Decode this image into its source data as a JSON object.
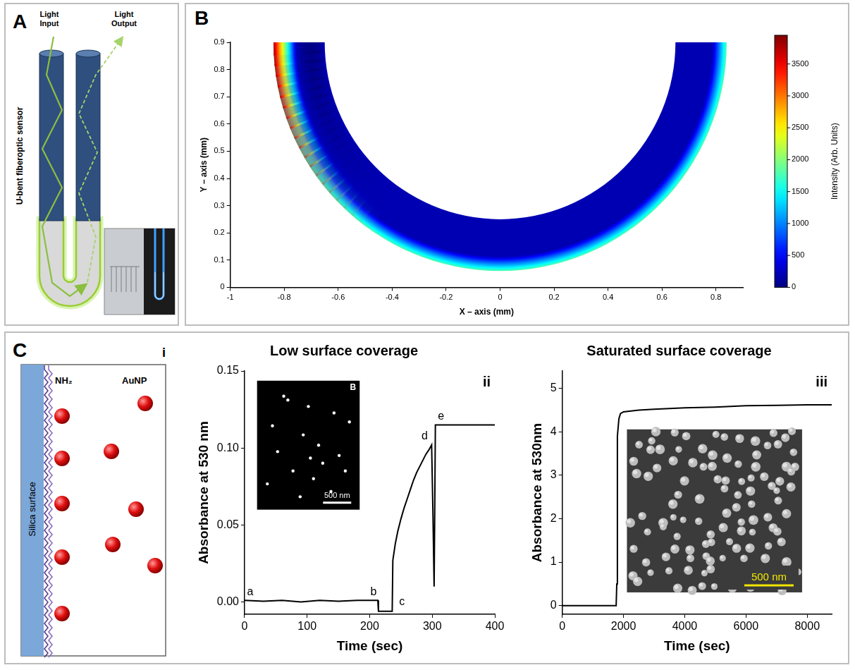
{
  "panel_A": {
    "letter": "A",
    "labels": {
      "input": "Light Input",
      "output": "Light Output",
      "device": "U-bent fiberoptic sensor"
    }
  },
  "panel_C": {
    "letter": "C",
    "i": {
      "roman": "i",
      "labels": {
        "surface": "Silica surface",
        "linker": "NH₂",
        "particle": "AuNP"
      }
    }
  },
  "chart_data": [
    {
      "panel": "B",
      "type": "heatmap",
      "x_label": "X – axis (mm)",
      "y_label": "Y – axis (mm)",
      "xlim": [
        -1,
        0.9
      ],
      "xticks": [
        -1,
        -0.8,
        -0.6,
        -0.4,
        -0.2,
        0,
        0.2,
        0.4,
        0.6,
        0.8
      ],
      "ylim": [
        0,
        0.9
      ],
      "yticks": [
        0,
        0.1,
        0.2,
        0.3,
        0.4,
        0.5,
        0.6,
        0.7,
        0.8,
        0.9
      ],
      "grid": false,
      "shape": {
        "center": [
          0,
          0.9
        ],
        "inner_radius": 0.65,
        "outer_radius": 0.84
      },
      "intensity": {
        "inner": 200,
        "rim": 1800,
        "peak": 3800
      },
      "colorbar": {
        "label": "Intensity (Arb. Units)",
        "range": [
          0,
          3950
        ],
        "ticks": [
          0,
          500,
          1000,
          1500,
          2000,
          2500,
          3000,
          3500
        ]
      }
    },
    {
      "roman": "ii",
      "type": "line",
      "title": "Low surface coverage",
      "x_label": "Time (sec)",
      "y_label": "Absorbance at 530 nm",
      "xlim": [
        0,
        400
      ],
      "xticks": [
        0,
        100,
        200,
        300,
        400
      ],
      "ylim": [
        -0.008,
        0.15
      ],
      "yticks": [
        {
          "value": 0,
          "label": "0.00"
        },
        {
          "value": 0.05,
          "label": "0.05"
        },
        {
          "value": 0.1,
          "label": "0.10"
        },
        {
          "value": 0.15,
          "label": "0.15"
        }
      ],
      "grid": false,
      "color": "#000000",
      "x": [
        0,
        30,
        60,
        90,
        120,
        150,
        180,
        213,
        214,
        236,
        237,
        241,
        245,
        250,
        255,
        260,
        265,
        270,
        275,
        280,
        285,
        290,
        295,
        299,
        301,
        303,
        304,
        305,
        320,
        350,
        400
      ],
      "values": [
        0.001,
        0.0005,
        0.001,
        0.0,
        0.001,
        0.0005,
        0.001,
        0.001,
        -0.006,
        -0.006,
        0.027,
        0.038,
        0.046,
        0.054,
        0.061,
        0.067,
        0.073,
        0.079,
        0.084,
        0.088,
        0.092,
        0.096,
        0.099,
        0.102,
        0.06,
        0.01,
        0.06,
        0.115,
        0.115,
        0.115,
        0.115
      ],
      "annotations": [
        {
          "text": "a",
          "x": 0,
          "y": 0.001
        },
        {
          "text": "b",
          "x": 213,
          "y": 0.001
        },
        {
          "text": "c",
          "x": 237,
          "y": -0.006
        },
        {
          "text": "d",
          "x": 299,
          "y": 0.102
        },
        {
          "text": "e",
          "x": 305,
          "y": 0.115
        }
      ],
      "inset": {
        "label": "B",
        "scale_bar": "500 nm"
      }
    },
    {
      "roman": "iii",
      "type": "line",
      "title": "Saturated surface coverage",
      "x_label": "Time (sec)",
      "y_label": "Absorbance at 530nm",
      "xlim": [
        0,
        8800
      ],
      "xticks": [
        0,
        2000,
        4000,
        6000,
        8000
      ],
      "ylim": [
        -0.2,
        5.4
      ],
      "yticks": [
        0,
        1,
        2,
        3,
        4,
        5
      ],
      "grid": false,
      "color": "#000000",
      "x": [
        0,
        500,
        1000,
        1500,
        1760,
        1780,
        1800,
        1850,
        1900,
        2000,
        2500,
        3000,
        4000,
        5000,
        6000,
        7000,
        8000,
        8800
      ],
      "values": [
        0,
        0,
        0,
        0,
        0,
        0.5,
        3.9,
        4.3,
        4.42,
        4.46,
        4.5,
        4.52,
        4.55,
        4.57,
        4.6,
        4.61,
        4.62,
        4.62
      ],
      "inset": {
        "scale_bar": "500 nm"
      }
    }
  ]
}
